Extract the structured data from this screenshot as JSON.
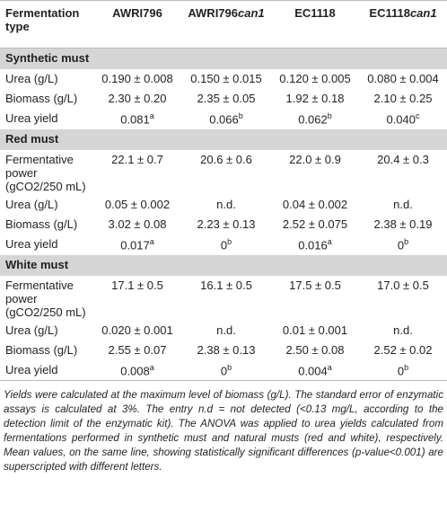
{
  "columns": [
    {
      "name": "Fermentation type"
    },
    {
      "name": "AWRI796"
    },
    {
      "name": "AWRI796",
      "italic": "can1"
    },
    {
      "name": "EC1118"
    },
    {
      "name": "EC1118",
      "italic": "can1"
    }
  ],
  "sections": [
    {
      "title": "Synthetic must",
      "rows": [
        {
          "label": "Urea (g/L)",
          "cells": [
            {
              "text": "0.190 ± 0.008"
            },
            {
              "text": "0.150 ± 0.015"
            },
            {
              "text": "0.120 ± 0.005"
            },
            {
              "text": "0.080 ± 0.004"
            }
          ]
        },
        {
          "label": "Biomass (g/L)",
          "cells": [
            {
              "text": "2.30 ± 0.20"
            },
            {
              "text": "2.35 ± 0.05"
            },
            {
              "text": "1.92 ± 0.18"
            },
            {
              "text": "2.10 ± 0.25"
            }
          ]
        },
        {
          "label": "Urea yield",
          "cells": [
            {
              "text": "0.081",
              "sup": "a"
            },
            {
              "text": "0.066",
              "sup": "b"
            },
            {
              "text": "0.062",
              "sup": "b"
            },
            {
              "text": "0.040",
              "sup": "c"
            }
          ]
        }
      ]
    },
    {
      "title": "Red must",
      "rows": [
        {
          "label": "Fermentative power (gCO2/250 mL)",
          "cells": [
            {
              "text": "22.1 ± 0.7"
            },
            {
              "text": "20.6 ± 0.6"
            },
            {
              "text": "22.0 ± 0.9"
            },
            {
              "text": "20.4 ± 0.3"
            }
          ]
        },
        {
          "label": "Urea (g/L)",
          "cells": [
            {
              "text": "0.05 ± 0.002"
            },
            {
              "text": "n.d."
            },
            {
              "text": "0.04 ± 0.002"
            },
            {
              "text": "n.d."
            }
          ]
        },
        {
          "label": "Biomass (g/L)",
          "cells": [
            {
              "text": "3.02 ± 0.08"
            },
            {
              "text": "2.23 ± 0.13"
            },
            {
              "text": "2.52 ± 0.075"
            },
            {
              "text": "2.38 ± 0.19"
            }
          ]
        },
        {
          "label": "Urea yield",
          "cells": [
            {
              "text": "0.017",
              "sup": "a"
            },
            {
              "text": "0",
              "sup": "b"
            },
            {
              "text": "0.016",
              "sup": "a"
            },
            {
              "text": "0",
              "sup": "b"
            }
          ]
        }
      ]
    },
    {
      "title": "White must",
      "rows": [
        {
          "label": "Fermentative power (gCO2/250 mL)",
          "cells": [
            {
              "text": "17.1 ± 0.5"
            },
            {
              "text": "16.1 ± 0.5"
            },
            {
              "text": "17.5 ± 0.5"
            },
            {
              "text": "17.0 ± 0.5"
            }
          ]
        },
        {
          "label": "Urea (g/L)",
          "cells": [
            {
              "text": "0.020 ± 0.001"
            },
            {
              "text": "n.d."
            },
            {
              "text": "0.01 ± 0.001"
            },
            {
              "text": "n.d."
            }
          ]
        },
        {
          "label": "Biomass (g/L)",
          "cells": [
            {
              "text": "2.55 ± 0.07"
            },
            {
              "text": "2.38 ± 0.13"
            },
            {
              "text": "2.50 ± 0.08"
            },
            {
              "text": "2.52 ± 0.02"
            }
          ]
        },
        {
          "label": "Urea yield",
          "cells": [
            {
              "text": "0.008",
              "sup": "a"
            },
            {
              "text": "0",
              "sup": "b"
            },
            {
              "text": "0.004",
              "sup": "a"
            },
            {
              "text": "0",
              "sup": "b"
            }
          ]
        }
      ]
    }
  ],
  "footnote": "Yields were calculated at the maximum level of biomass (g/L). The standard error of enzymatic assays is calculated at 3%. The entry n.d = not detected (<0.13 mg/L, according to the detection limit of the enzymatic kit). The ANOVA was applied to urea yields calculated from fermentations performed in synthetic must and natural musts (red and white), respectively. Mean values, on the same line, showing statistically significant differences (p-value<0.001) are superscripted with different letters."
}
